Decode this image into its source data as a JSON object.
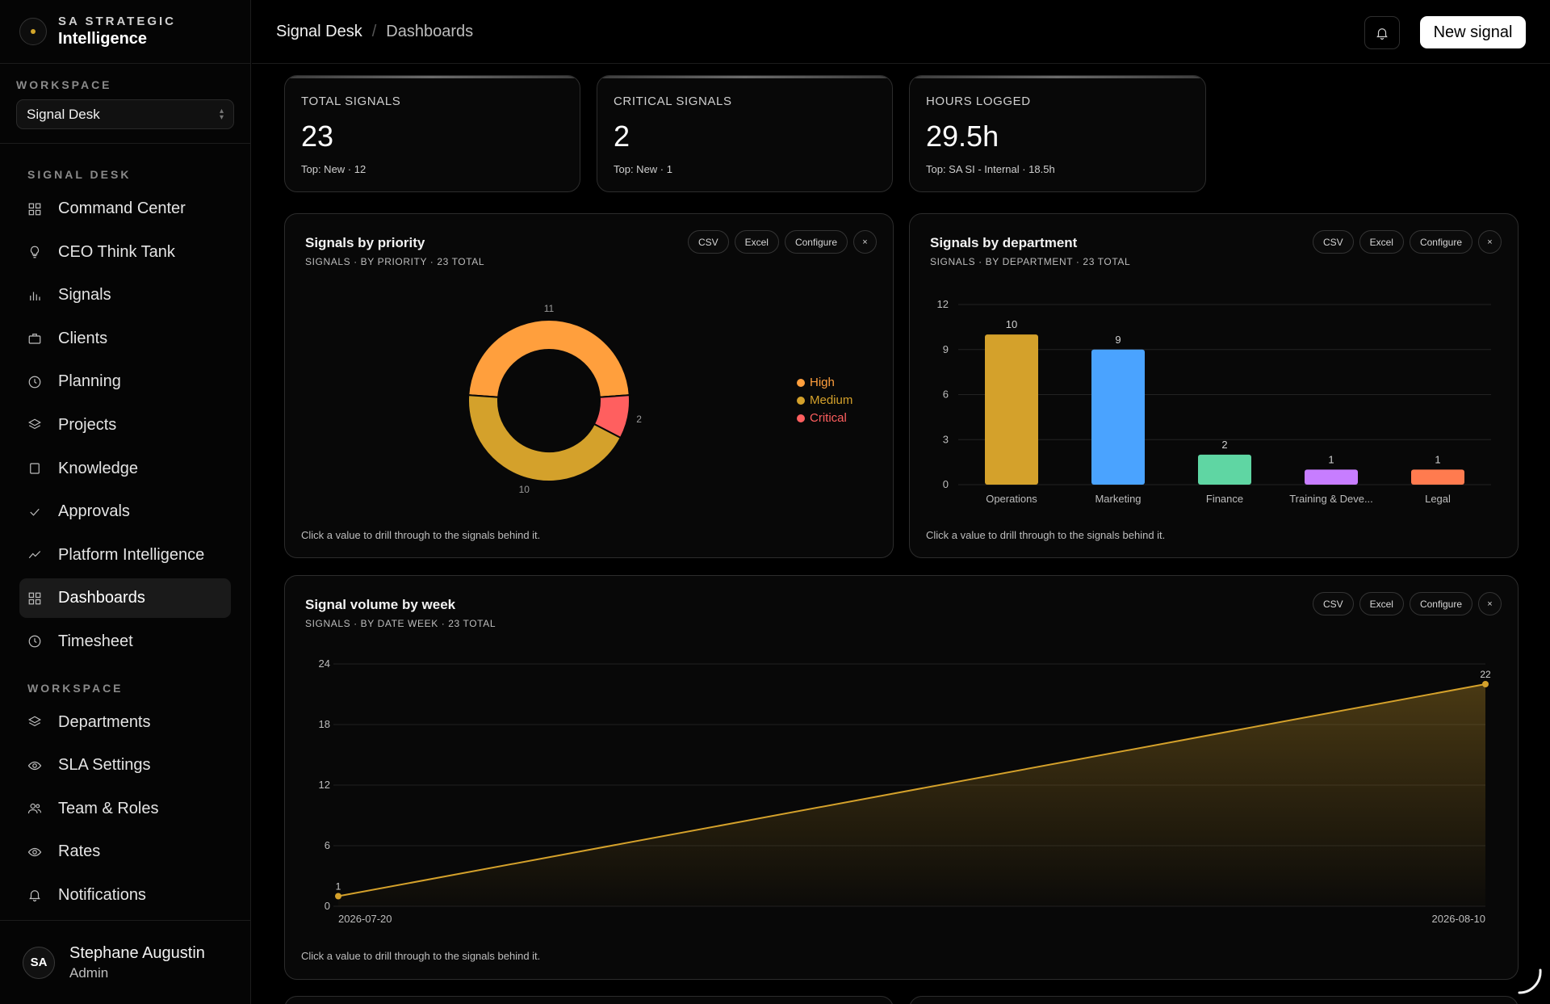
{
  "brand": {
    "line1": "SA STRATEGIC",
    "line2": "Intelligence"
  },
  "workspace_selector": {
    "label": "WORKSPACE",
    "value": "Signal Desk"
  },
  "nav_sections": [
    {
      "label": "SIGNAL DESK",
      "items": [
        {
          "label": "Command Center",
          "icon": "grid-icon"
        },
        {
          "label": "CEO Think Tank",
          "icon": "lightbulb-icon"
        },
        {
          "label": "Signals",
          "icon": "bars-icon"
        },
        {
          "label": "Clients",
          "icon": "briefcase-icon"
        },
        {
          "label": "Planning",
          "icon": "clock-icon"
        },
        {
          "label": "Projects",
          "icon": "layers-icon"
        },
        {
          "label": "Knowledge",
          "icon": "square-icon"
        },
        {
          "label": "Approvals",
          "icon": "check-icon"
        },
        {
          "label": "Platform Intelligence",
          "icon": "trend-icon"
        },
        {
          "label": "Dashboards",
          "icon": "grid-icon",
          "active": true
        },
        {
          "label": "Timesheet",
          "icon": "clock-icon"
        }
      ]
    },
    {
      "label": "WORKSPACE",
      "items": [
        {
          "label": "Departments",
          "icon": "layers-icon"
        },
        {
          "label": "SLA Settings",
          "icon": "eye-icon"
        },
        {
          "label": "Team & Roles",
          "icon": "users-icon"
        },
        {
          "label": "Rates",
          "icon": "eye-icon"
        },
        {
          "label": "Notifications",
          "icon": "bell-icon"
        }
      ]
    }
  ],
  "user": {
    "initials": "SA",
    "name": "Stephane Augustin",
    "role": "Admin"
  },
  "header": {
    "crumb_root": "Signal Desk",
    "crumb_sep": "/",
    "crumb_current": "Dashboards",
    "new_button": "New signal"
  },
  "stats": [
    {
      "label": "TOTAL SIGNALS",
      "value": "23",
      "sub": "Top: New · 12"
    },
    {
      "label": "CRITICAL SIGNALS",
      "value": "2",
      "sub": "Top: New · 1"
    },
    {
      "label": "HOURS LOGGED",
      "value": "29.5h",
      "sub": "Top: SA SI - Internal · 18.5h"
    }
  ],
  "panel_buttons": {
    "csv": "CSV",
    "excel": "Excel",
    "configure": "Configure",
    "close": "×"
  },
  "footnote": "Click a value to drill through to the signals behind it.",
  "panels": {
    "priority": {
      "title": "Signals by priority",
      "subtitle": "SIGNALS · BY PRIORITY · 23 TOTAL"
    },
    "department": {
      "title": "Signals by department",
      "subtitle": "SIGNALS · BY DEPARTMENT · 23 TOTAL"
    },
    "week": {
      "title": "Signal volume by week",
      "subtitle": "SIGNALS · BY DATE WEEK · 23 TOTAL"
    }
  },
  "chart_data": [
    {
      "type": "pie",
      "labels": [
        "High",
        "Critical",
        "Medium"
      ],
      "values": [
        11,
        2,
        10
      ],
      "colors": [
        "#ff9f3d",
        "#ff5f5f",
        "#d4a12b"
      ],
      "legend_order": [
        "High",
        "Medium",
        "Critical"
      ],
      "legend_colors": {
        "High": "#ff9f3d",
        "Medium": "#d4a12b",
        "Critical": "#ff5f5f"
      },
      "legend": "right"
    },
    {
      "type": "bar",
      "categories": [
        "Operations",
        "Marketing",
        "Finance",
        "Training & Deve...",
        "Legal"
      ],
      "values": [
        10,
        9,
        2,
        1,
        1
      ],
      "colors": [
        "#d4a12b",
        "#4aa3ff",
        "#5fd6a3",
        "#c77dff",
        "#ff7b4f"
      ],
      "yticks": [
        0,
        3,
        6,
        9,
        12
      ],
      "ylim": [
        0,
        12
      ],
      "grid": true
    },
    {
      "type": "area",
      "x": [
        "2026-07-20",
        "2026-08-10"
      ],
      "values": [
        1,
        22
      ],
      "color": "#d4a12b",
      "yticks": [
        0,
        6,
        12,
        18,
        24
      ],
      "ylim": [
        0,
        24
      ],
      "grid": true
    }
  ]
}
